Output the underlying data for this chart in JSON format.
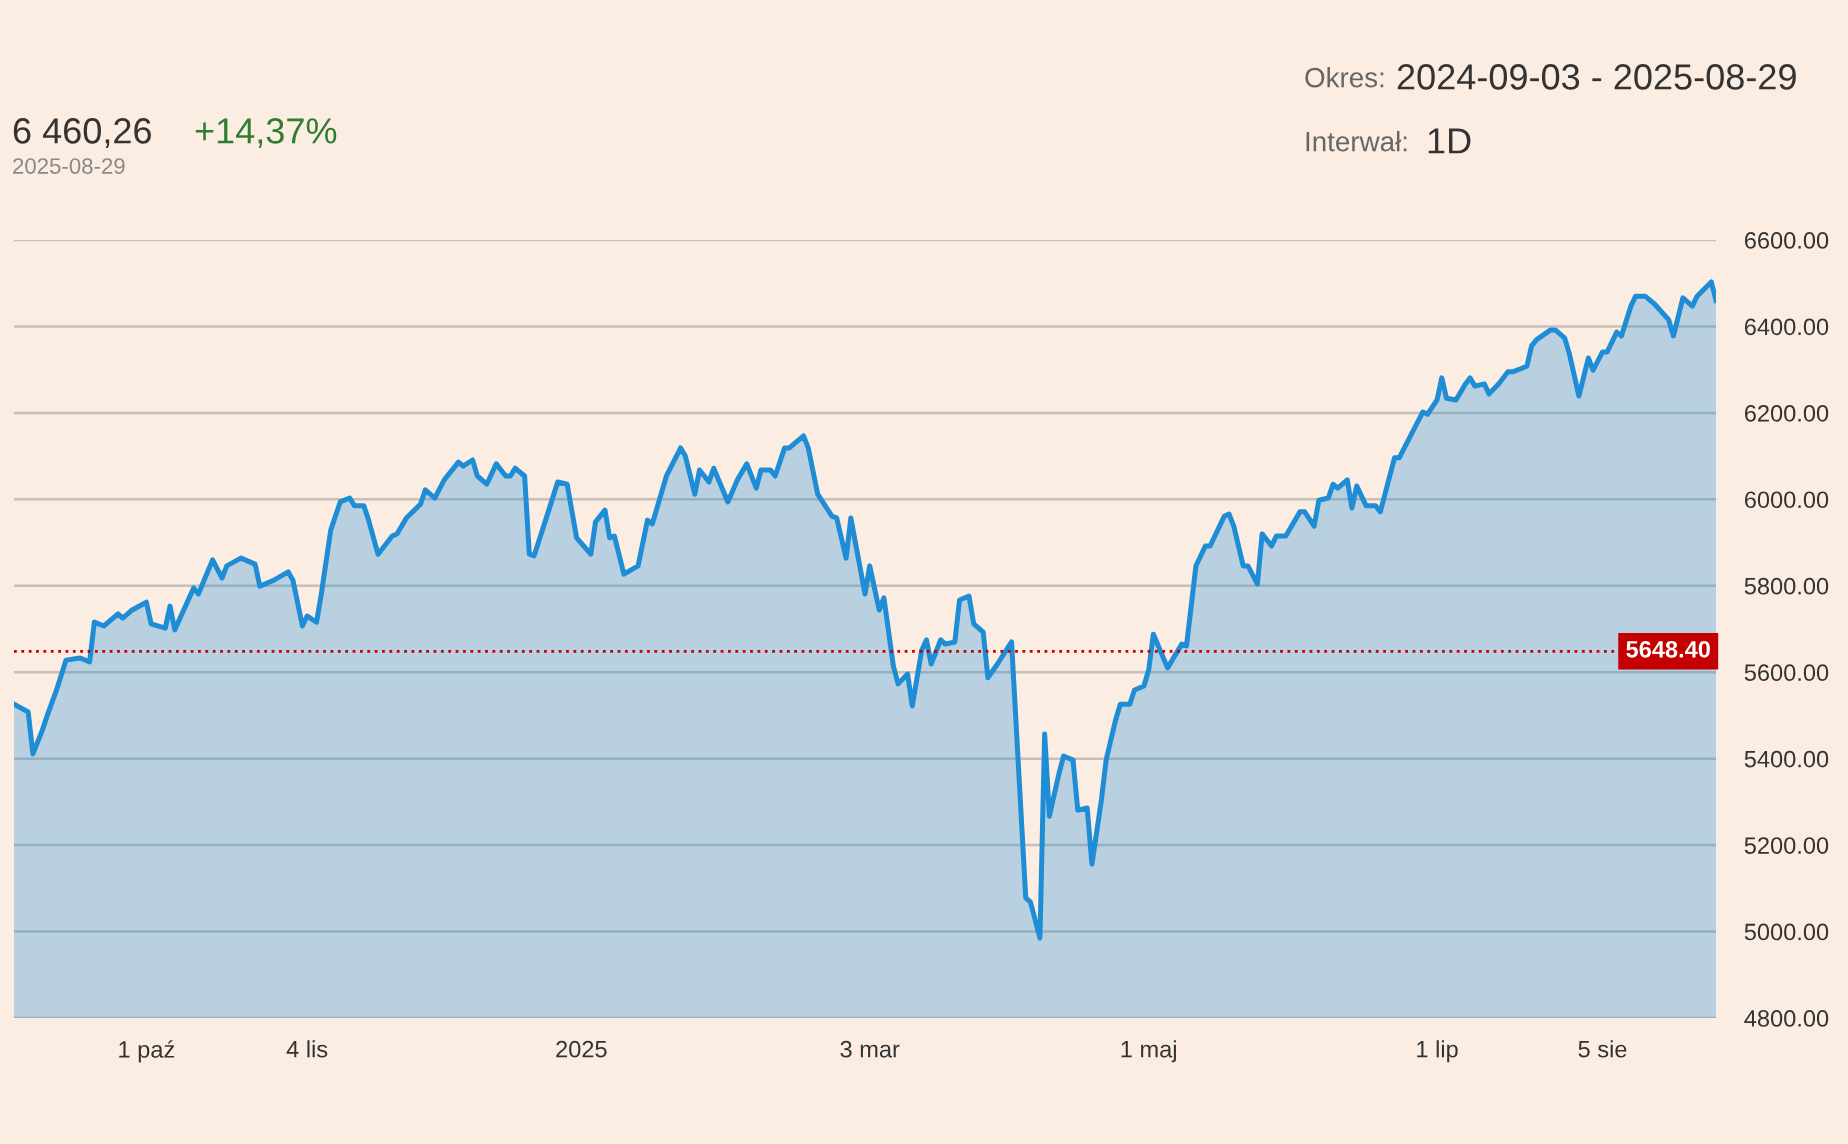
{
  "chart_data": {
    "type": "area",
    "x": [
      "2024-09-03",
      "2024-09-06",
      "2024-09-07",
      "2024-09-09",
      "2024-09-10",
      "2024-09-12",
      "2024-09-14",
      "2024-09-17",
      "2024-09-19",
      "2024-09-20",
      "2024-09-22",
      "2024-09-25",
      "2024-09-26",
      "2024-09-28",
      "2024-10-01",
      "2024-10-02",
      "2024-10-05",
      "2024-10-06",
      "2024-10-07",
      "2024-10-11",
      "2024-10-12",
      "2024-10-15",
      "2024-10-17",
      "2024-10-18",
      "2024-10-21",
      "2024-10-24",
      "2024-10-25",
      "2024-10-28",
      "2024-10-31",
      "2024-11-01",
      "2024-11-03",
      "2024-11-04",
      "2024-11-06",
      "2024-11-07",
      "2024-11-09",
      "2024-11-11",
      "2024-11-13",
      "2024-11-14",
      "2024-11-16",
      "2024-11-17",
      "2024-11-19",
      "2024-11-22",
      "2024-11-23",
      "2024-11-25",
      "2024-11-28",
      "2024-11-29",
      "2024-12-01",
      "2024-12-03",
      "2024-12-06",
      "2024-12-07",
      "2024-12-09",
      "2024-12-10",
      "2024-12-12",
      "2024-12-14",
      "2024-12-16",
      "2024-12-17",
      "2024-12-18",
      "2024-12-20",
      "2024-12-21",
      "2024-12-22",
      "2024-12-25",
      "2024-12-27",
      "2024-12-29",
      "2024-12-31",
      "2025-01-03",
      "2025-01-04",
      "2025-01-06",
      "2025-01-07",
      "2025-01-08",
      "2025-01-10",
      "2025-01-13",
      "2025-01-15",
      "2025-01-16",
      "2025-01-19",
      "2025-01-22",
      "2025-01-23",
      "2025-01-25",
      "2025-01-26",
      "2025-01-28",
      "2025-01-29",
      "2025-02-01",
      "2025-02-03",
      "2025-02-05",
      "2025-02-07",
      "2025-02-08",
      "2025-02-10",
      "2025-02-11",
      "2025-02-13",
      "2025-02-14",
      "2025-02-17",
      "2025-02-18",
      "2025-02-20",
      "2025-02-23",
      "2025-02-24",
      "2025-02-26",
      "2025-02-27",
      "2025-03-02",
      "2025-03-03",
      "2025-03-05",
      "2025-03-06",
      "2025-03-08",
      "2025-03-09",
      "2025-03-11",
      "2025-03-12",
      "2025-03-14",
      "2025-03-15",
      "2025-03-16",
      "2025-03-18",
      "2025-03-19",
      "2025-03-21",
      "2025-03-22",
      "2025-03-24",
      "2025-03-25",
      "2025-03-27",
      "2025-03-28",
      "2025-03-30",
      "2025-04-02",
      "2025-04-05",
      "2025-04-06",
      "2025-04-08",
      "2025-04-09",
      "2025-04-10",
      "2025-04-12",
      "2025-04-13",
      "2025-04-15",
      "2025-04-16",
      "2025-04-18",
      "2025-04-19",
      "2025-04-21",
      "2025-04-22",
      "2025-04-24",
      "2025-04-25",
      "2025-04-27",
      "2025-04-28",
      "2025-04-30",
      "2025-05-01",
      "2025-05-02",
      "2025-05-05",
      "2025-05-08",
      "2025-05-09",
      "2025-05-11",
      "2025-05-13",
      "2025-05-14",
      "2025-05-17",
      "2025-05-18",
      "2025-05-19",
      "2025-05-21",
      "2025-05-22",
      "2025-05-24",
      "2025-05-25",
      "2025-05-27",
      "2025-05-28",
      "2025-05-30",
      "2025-06-02",
      "2025-06-03",
      "2025-06-05",
      "2025-06-06",
      "2025-06-08",
      "2025-06-09",
      "2025-06-10",
      "2025-06-12",
      "2025-06-13",
      "2025-06-14",
      "2025-06-16",
      "2025-06-18",
      "2025-06-19",
      "2025-06-22",
      "2025-06-23",
      "2025-06-26",
      "2025-06-28",
      "2025-06-29",
      "2025-07-01",
      "2025-07-02",
      "2025-07-03",
      "2025-07-05",
      "2025-07-07",
      "2025-07-08",
      "2025-07-09",
      "2025-07-11",
      "2025-07-12",
      "2025-07-14",
      "2025-07-16",
      "2025-07-17",
      "2025-07-20",
      "2025-07-21",
      "2025-07-22",
      "2025-07-25",
      "2025-07-26",
      "2025-07-28",
      "2025-07-29",
      "2025-07-31",
      "2025-08-02",
      "2025-08-03",
      "2025-08-05",
      "2025-08-06",
      "2025-08-08",
      "2025-08-09",
      "2025-08-11",
      "2025-08-12",
      "2025-08-14",
      "2025-08-16",
      "2025-08-19",
      "2025-08-20",
      "2025-08-22",
      "2025-08-24",
      "2025-08-25",
      "2025-08-28",
      "2025-08-29"
    ],
    "series": [
      {
        "color": "#1f8dd6",
        "values": [
          5526,
          5508,
          5411,
          5466,
          5499,
          5559,
          5628,
          5633,
          5624,
          5716,
          5707,
          5735,
          5725,
          5744,
          5762,
          5712,
          5702,
          5753,
          5698,
          5795,
          5781,
          5860,
          5818,
          5846,
          5864,
          5850,
          5799,
          5813,
          5832,
          5813,
          5707,
          5730,
          5716,
          5781,
          5929,
          5994,
          6003,
          5985,
          5985,
          5952,
          5873,
          5915,
          5920,
          5957,
          5989,
          6022,
          6003,
          6045,
          6086,
          6077,
          6091,
          6054,
          6035,
          6082,
          6054,
          6054,
          6072,
          6054,
          5873,
          5869,
          5971,
          6040,
          6035,
          5911,
          5873,
          5948,
          5975,
          5911,
          5915,
          5827,
          5846,
          5952,
          5943,
          6054,
          6119,
          6100,
          6012,
          6068,
          6040,
          6072,
          5994,
          6045,
          6082,
          6026,
          6068,
          6068,
          6054,
          6119,
          6119,
          6147,
          6119,
          6012,
          5961,
          5957,
          5864,
          5957,
          5781,
          5846,
          5744,
          5772,
          5614,
          5573,
          5596,
          5522,
          5651,
          5675,
          5619,
          5675,
          5665,
          5670,
          5767,
          5776,
          5712,
          5693,
          5587,
          5619,
          5670,
          5078,
          5068,
          4985,
          5457,
          5267,
          5364,
          5406,
          5397,
          5281,
          5286,
          5156,
          5304,
          5397,
          5489,
          5526,
          5526,
          5559,
          5568,
          5605,
          5688,
          5610,
          5665,
          5661,
          5846,
          5892,
          5892,
          5961,
          5966,
          5938,
          5846,
          5846,
          5804,
          5920,
          5892,
          5915,
          5915,
          5971,
          5971,
          5938,
          5998,
          6003,
          6035,
          6026,
          6045,
          5980,
          6031,
          5985,
          5985,
          5971,
          6096,
          6096,
          6160,
          6202,
          6197,
          6230,
          6281,
          6234,
          6230,
          6267,
          6281,
          6262,
          6267,
          6244,
          6267,
          6295,
          6295,
          6308,
          6355,
          6369,
          6392,
          6392,
          6373,
          6336,
          6239,
          6327,
          6299,
          6341,
          6341,
          6387,
          6378,
          6447,
          6470,
          6470,
          6452,
          6415,
          6378,
          6466,
          6447,
          6470,
          6503,
          6460
        ]
      }
    ],
    "xlim": [
      "2024-09-03",
      "2025-08-29"
    ],
    "xticks": [
      {
        "value": "2024-10-01",
        "label": "1 paź"
      },
      {
        "value": "2024-11-04",
        "label": "4 lis"
      },
      {
        "value": "2025-01-01",
        "label": "2025"
      },
      {
        "value": "2025-03-03",
        "label": "3 mar"
      },
      {
        "value": "2025-05-01",
        "label": "1 maj"
      },
      {
        "value": "2025-07-01",
        "label": "1 lip"
      },
      {
        "value": "2025-08-05",
        "label": "5 sie"
      }
    ],
    "ylim": [
      4800,
      6600
    ],
    "yticks": [
      {
        "value": 4800,
        "label": "4800.00"
      },
      {
        "value": 5000,
        "label": "5000.00"
      },
      {
        "value": 5200,
        "label": "5200.00"
      },
      {
        "value": 5400,
        "label": "5400.00"
      },
      {
        "value": 5600,
        "label": "5600.00"
      },
      {
        "value": 5800,
        "label": "5800.00"
      },
      {
        "value": 6000,
        "label": "6000.00"
      },
      {
        "value": 6200,
        "label": "6200.00"
      },
      {
        "value": 6400,
        "label": "6400.00"
      },
      {
        "value": 6600,
        "label": "6600.00"
      }
    ],
    "grid": "y",
    "ref_lines": [
      {
        "axis": "y",
        "value": 5648.4,
        "label": "5648.40",
        "color": "#c40000",
        "line_style": "dotted"
      }
    ],
    "annotations": [
      "6 460,26",
      "+14,37%",
      "2025-08-29",
      "Okres:",
      "2024-09-03 - 2025-08-29",
      "Interwał:",
      "1D"
    ]
  }
}
